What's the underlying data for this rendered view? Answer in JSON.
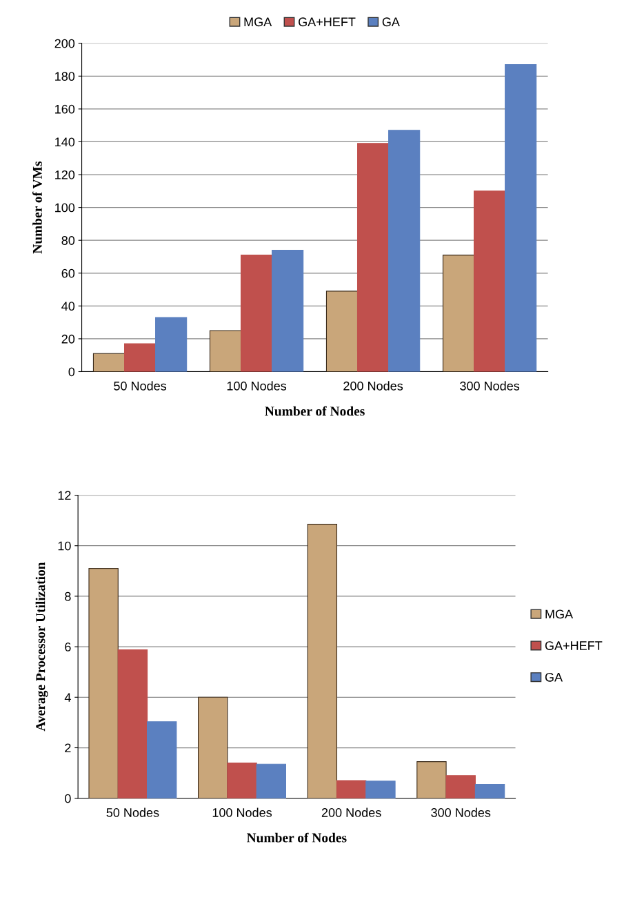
{
  "chart_data": [
    {
      "type": "bar",
      "categories": [
        "50 Nodes",
        "100 Nodes",
        "200 Nodes",
        "300 Nodes"
      ],
      "xlabel": "Number of Nodes",
      "ylabel": "Number of VMs",
      "ylim": [
        0,
        200
      ],
      "yticks": [
        0,
        20,
        40,
        60,
        80,
        100,
        120,
        140,
        160,
        180,
        200
      ],
      "grid": "y",
      "legend": "top",
      "series": [
        {
          "name": "MGA",
          "color": "#c9a67a",
          "values": [
            11,
            25,
            49,
            71
          ]
        },
        {
          "name": "GA+HEFT",
          "color": "#c0504d",
          "values": [
            17,
            71,
            139,
            110
          ]
        },
        {
          "name": "GA",
          "color": "#5b80c0",
          "values": [
            33,
            74,
            147,
            187
          ]
        }
      ]
    },
    {
      "type": "bar",
      "categories": [
        "50 Nodes",
        "100 Nodes",
        "200 Nodes",
        "300 Nodes"
      ],
      "xlabel": "Number of Nodes",
      "ylabel": "Average Processor Utilization",
      "ylim": [
        0,
        12
      ],
      "yticks": [
        0,
        2,
        4,
        6,
        8,
        10,
        12
      ],
      "grid": "y",
      "legend": "right",
      "series": [
        {
          "name": "MGA",
          "color": "#c9a67a",
          "values": [
            9.1,
            4.0,
            10.85,
            1.45
          ]
        },
        {
          "name": "GA+HEFT",
          "color": "#c0504d",
          "values": [
            5.88,
            1.4,
            0.7,
            0.9
          ]
        },
        {
          "name": "GA",
          "color": "#5b80c0",
          "values": [
            3.03,
            1.35,
            0.68,
            0.55
          ]
        }
      ]
    }
  ]
}
